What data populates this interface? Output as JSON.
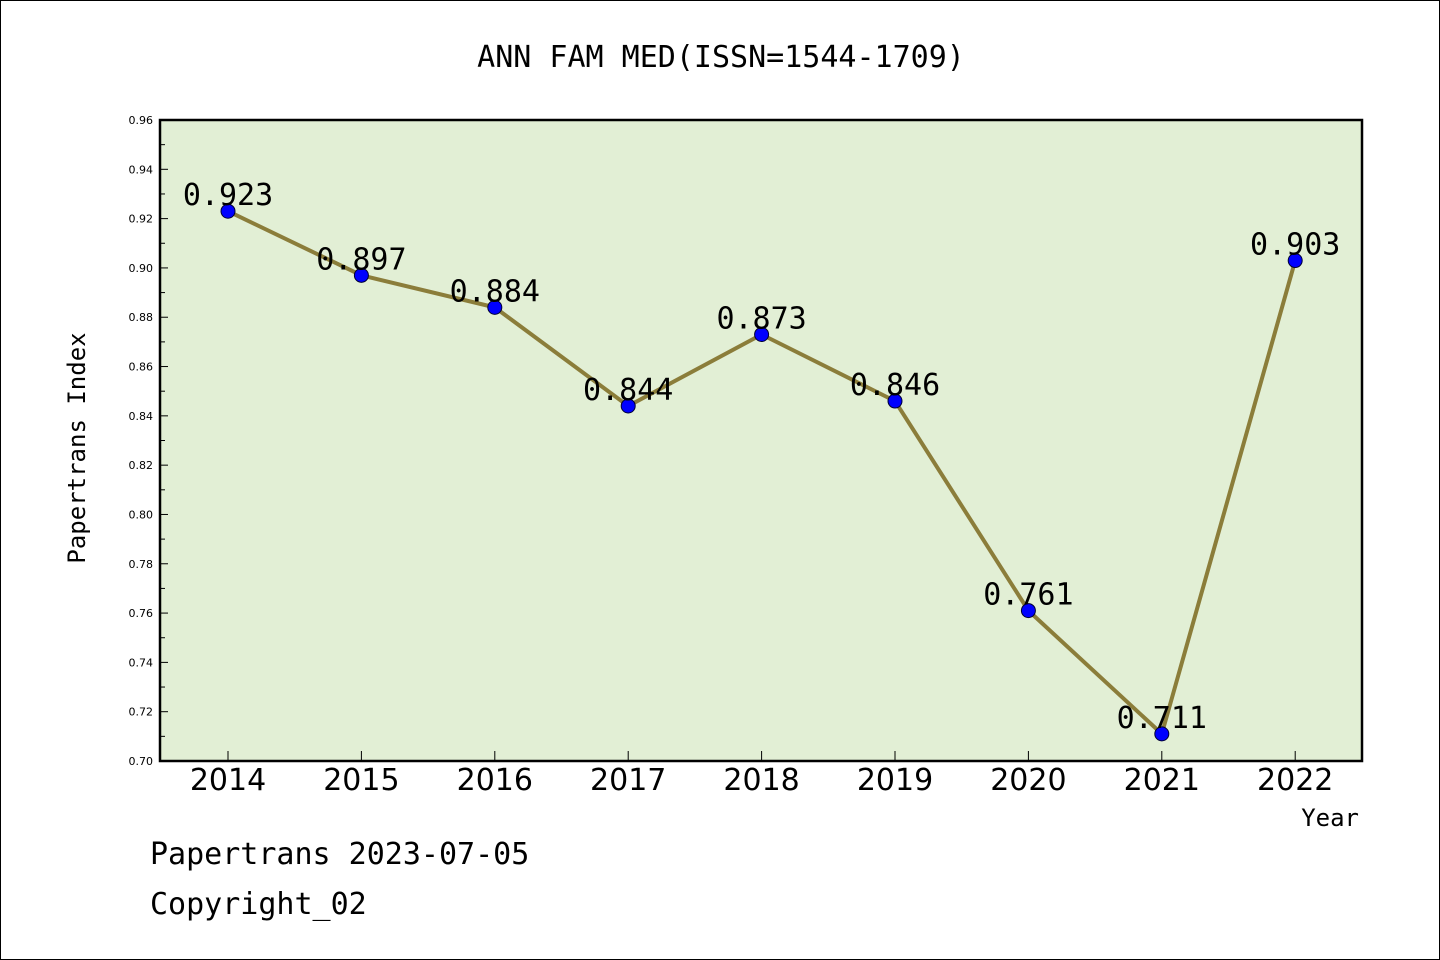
{
  "chart_data": {
    "type": "line",
    "title": "ANN FAM MED(ISSN=1544-1709)",
    "xlabel": "Year",
    "ylabel": "Papertrans Index",
    "categories": [
      "2014",
      "2015",
      "2016",
      "2017",
      "2018",
      "2019",
      "2020",
      "2021",
      "2022"
    ],
    "series": [
      {
        "values": [
          0.923,
          0.897,
          0.884,
          0.844,
          0.873,
          0.846,
          0.761,
          0.711,
          0.903
        ],
        "labels": [
          "0.923",
          "0.897",
          "0.884",
          "0.844",
          "0.873",
          "0.846",
          "0.761",
          "0.711",
          "0.903"
        ]
      }
    ],
    "ylim": [
      0.7,
      0.96
    ],
    "yticks": [
      "0.70",
      "0.72",
      "0.74",
      "0.76",
      "0.78",
      "0.80",
      "0.82",
      "0.84",
      "0.86",
      "0.88",
      "0.90",
      "0.92",
      "0.94",
      "0.96"
    ],
    "grid": false,
    "colors": {
      "plot_background": "#e2efd5",
      "line": "#8b7d3a",
      "marker": "#0000ff"
    }
  },
  "footer": {
    "line1": "Papertrans 2023-07-05",
    "line2": "Copyright_02"
  }
}
